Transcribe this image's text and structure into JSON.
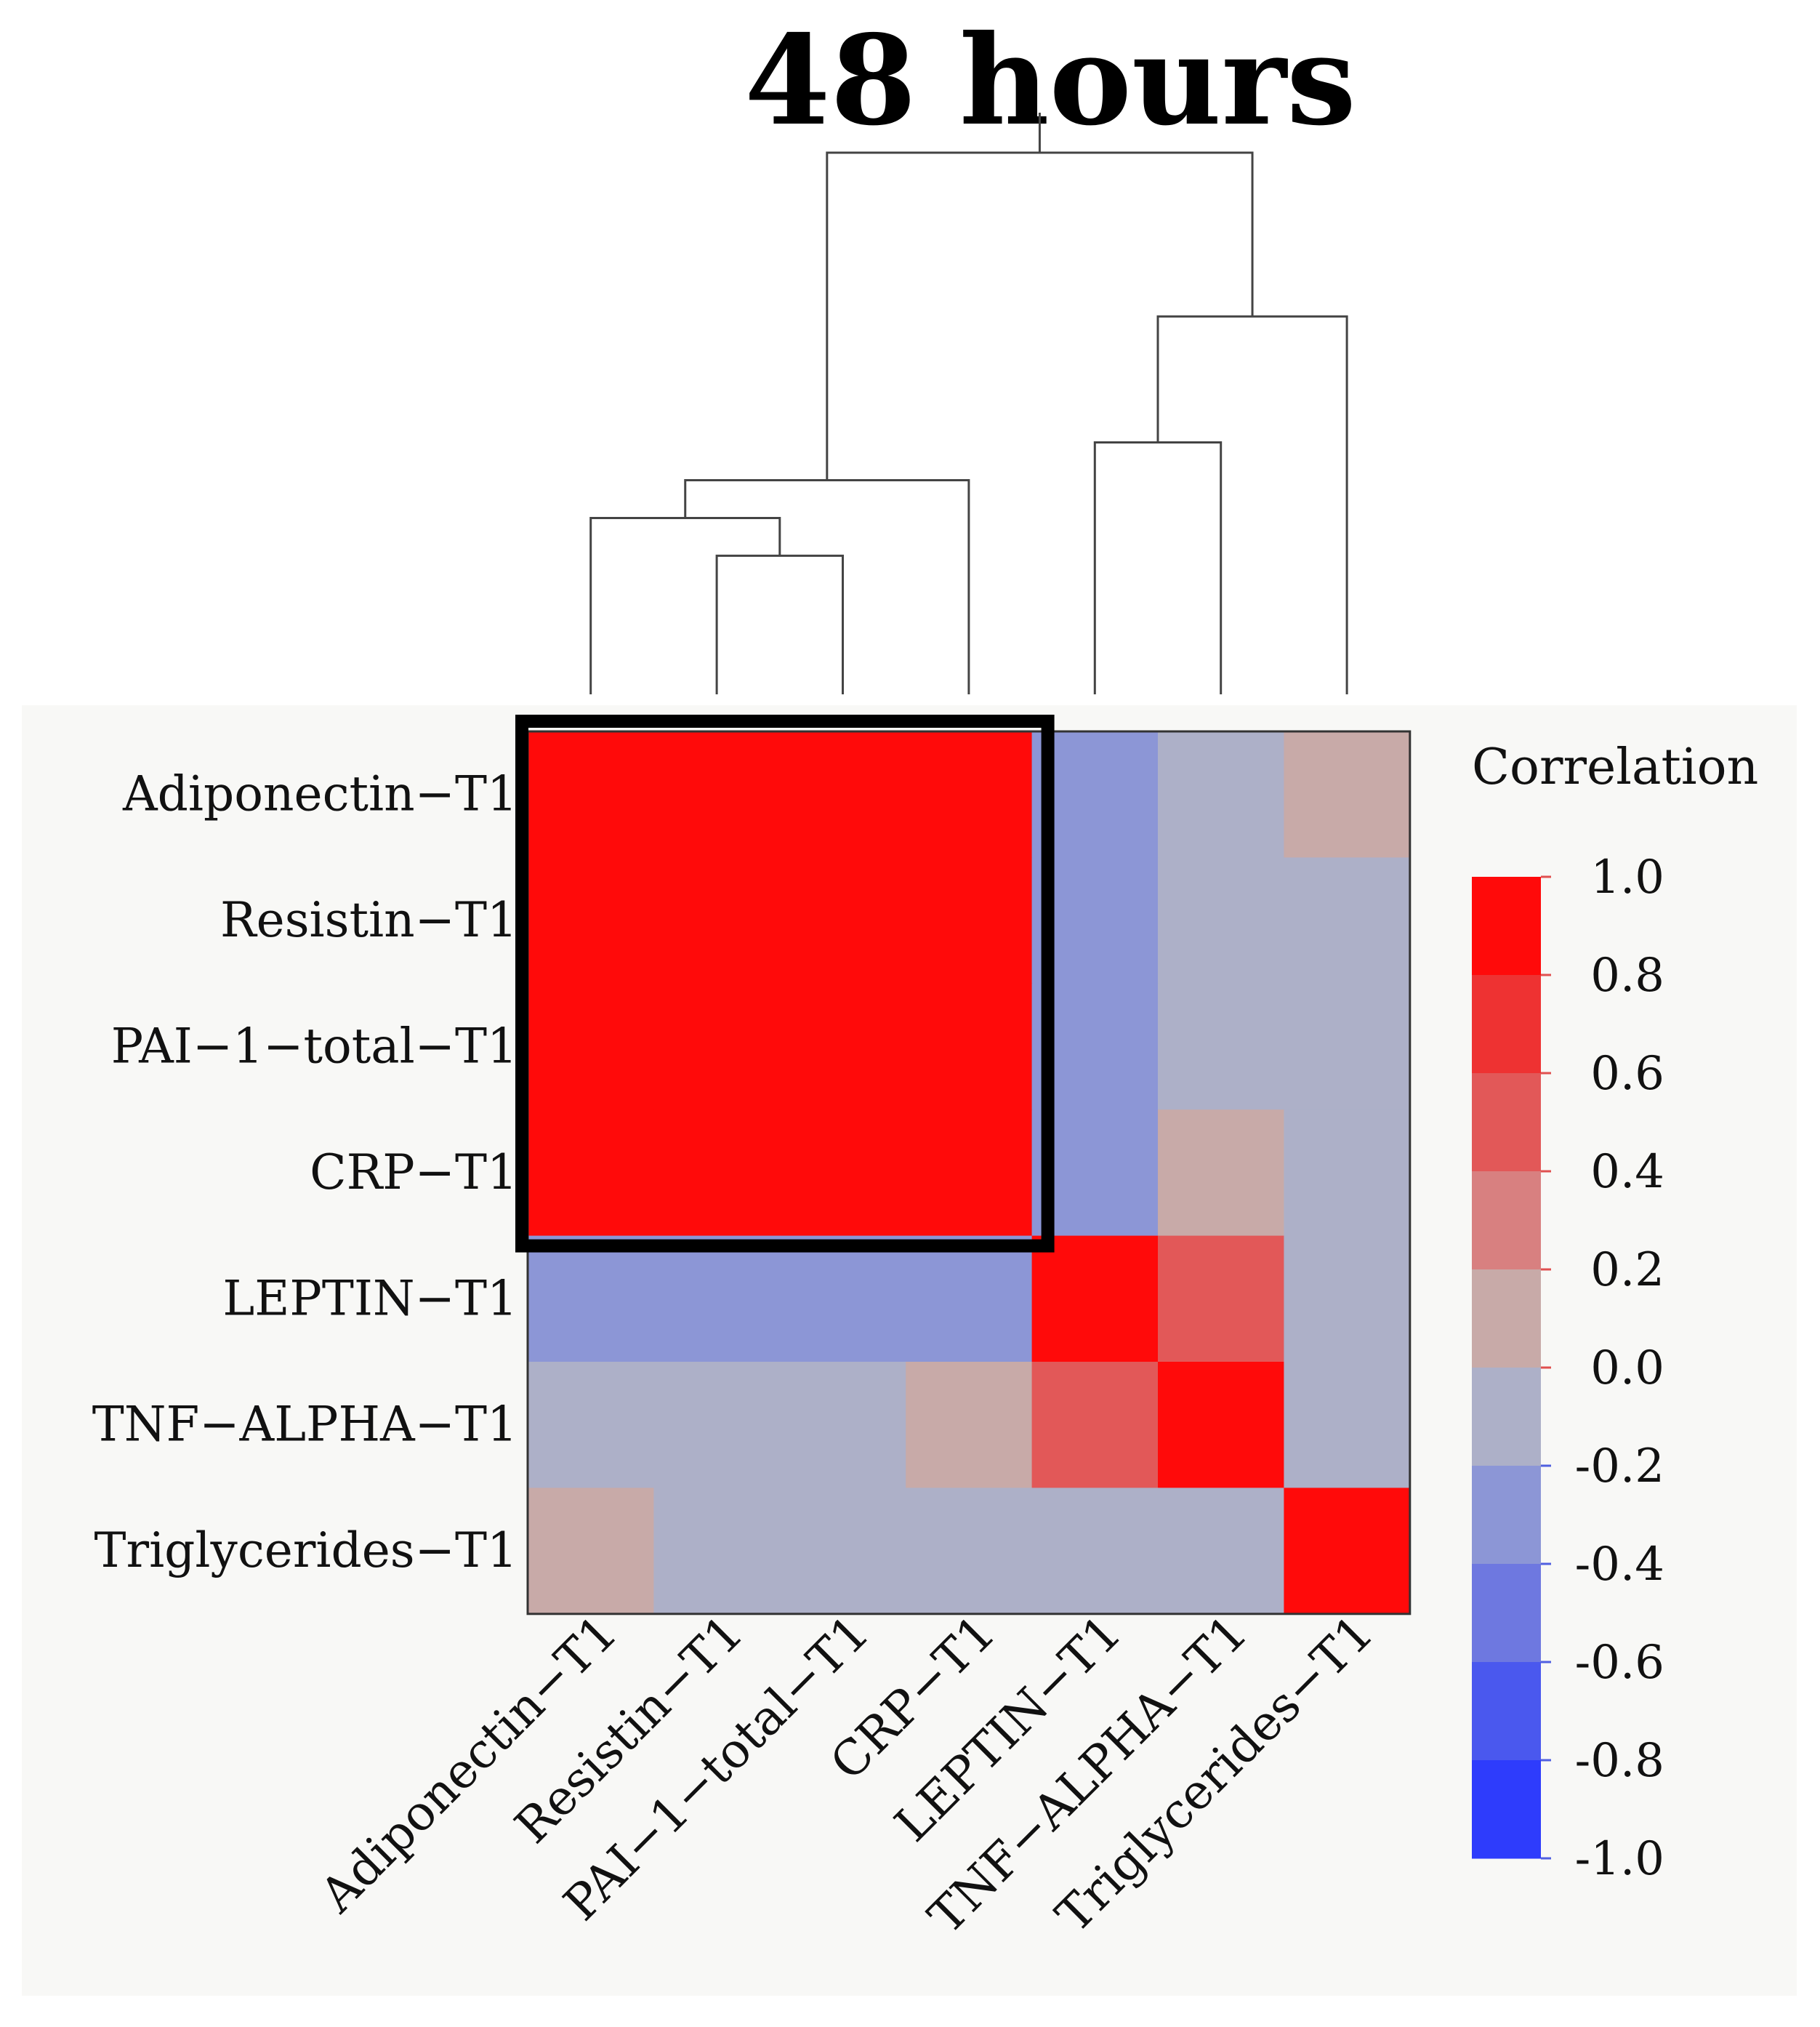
{
  "chart_data": {
    "type": "heatmap",
    "title": "48 hours",
    "variables": [
      "Adiponectin−T1",
      "Resistin−T1",
      "PAI−1−total−T1",
      "CRP−T1",
      "LEPTIN−T1",
      "TNF−ALPHA−T1",
      "Triglycerides−T1"
    ],
    "matrix": [
      [
        1.0,
        0.9,
        0.9,
        0.9,
        -0.3,
        -0.1,
        0.1
      ],
      [
        0.9,
        1.0,
        1.0,
        0.9,
        -0.3,
        -0.1,
        -0.1
      ],
      [
        0.9,
        1.0,
        1.0,
        0.9,
        -0.3,
        -0.1,
        -0.1
      ],
      [
        0.9,
        0.9,
        0.9,
        1.0,
        -0.3,
        0.1,
        -0.1
      ],
      [
        -0.3,
        -0.3,
        -0.3,
        -0.3,
        1.0,
        0.5,
        -0.1
      ],
      [
        -0.1,
        -0.1,
        -0.1,
        0.1,
        0.5,
        1.0,
        -0.1
      ],
      [
        0.1,
        -0.1,
        -0.1,
        -0.1,
        -0.1,
        -0.1,
        1.0
      ]
    ],
    "legend": {
      "title": "Correlation",
      "ticks": [
        "1.0",
        "0.8",
        "0.6",
        "0.4",
        "0.2",
        "0.0",
        "-0.2",
        "-0.4",
        "-0.6",
        "-0.8",
        "-1.0"
      ],
      "bins": [
        {
          "from": 0.8,
          "to": 1.0,
          "color": "#ff0a0a"
        },
        {
          "from": 0.6,
          "to": 0.8,
          "color": "#ee3232"
        },
        {
          "from": 0.4,
          "to": 0.6,
          "color": "#e25858"
        },
        {
          "from": 0.2,
          "to": 0.4,
          "color": "#d88080"
        },
        {
          "from": 0.0,
          "to": 0.2,
          "color": "#c8aaa8"
        },
        {
          "from": -0.2,
          "to": 0.0,
          "color": "#adb0c8"
        },
        {
          "from": -0.4,
          "to": -0.2,
          "color": "#8c96d6"
        },
        {
          "from": -0.6,
          "to": -0.4,
          "color": "#6e78e0"
        },
        {
          "from": -0.8,
          "to": -0.6,
          "color": "#4a58ee"
        },
        {
          "from": -1.0,
          "to": -0.8,
          "color": "#2e3cfc"
        }
      ]
    },
    "highlight_cluster": {
      "from_index": 0,
      "to_index": 3
    },
    "dendrogram": {
      "order": [
        0,
        1,
        2,
        3,
        4,
        5,
        6
      ],
      "merges": [
        {
          "a": 1,
          "b": 2,
          "height": 0.11
        },
        {
          "a": 0,
          "b": "1,2",
          "height": 0.14
        },
        {
          "a": 4,
          "b": 5,
          "height": 0.2
        },
        {
          "a": "0,1,2",
          "b": 3,
          "height": 0.17
        },
        {
          "a": "4,5",
          "b": 6,
          "height": 0.3
        },
        {
          "a": "0,1,2,3",
          "b": "4,5,6",
          "height": 0.43
        }
      ]
    }
  }
}
